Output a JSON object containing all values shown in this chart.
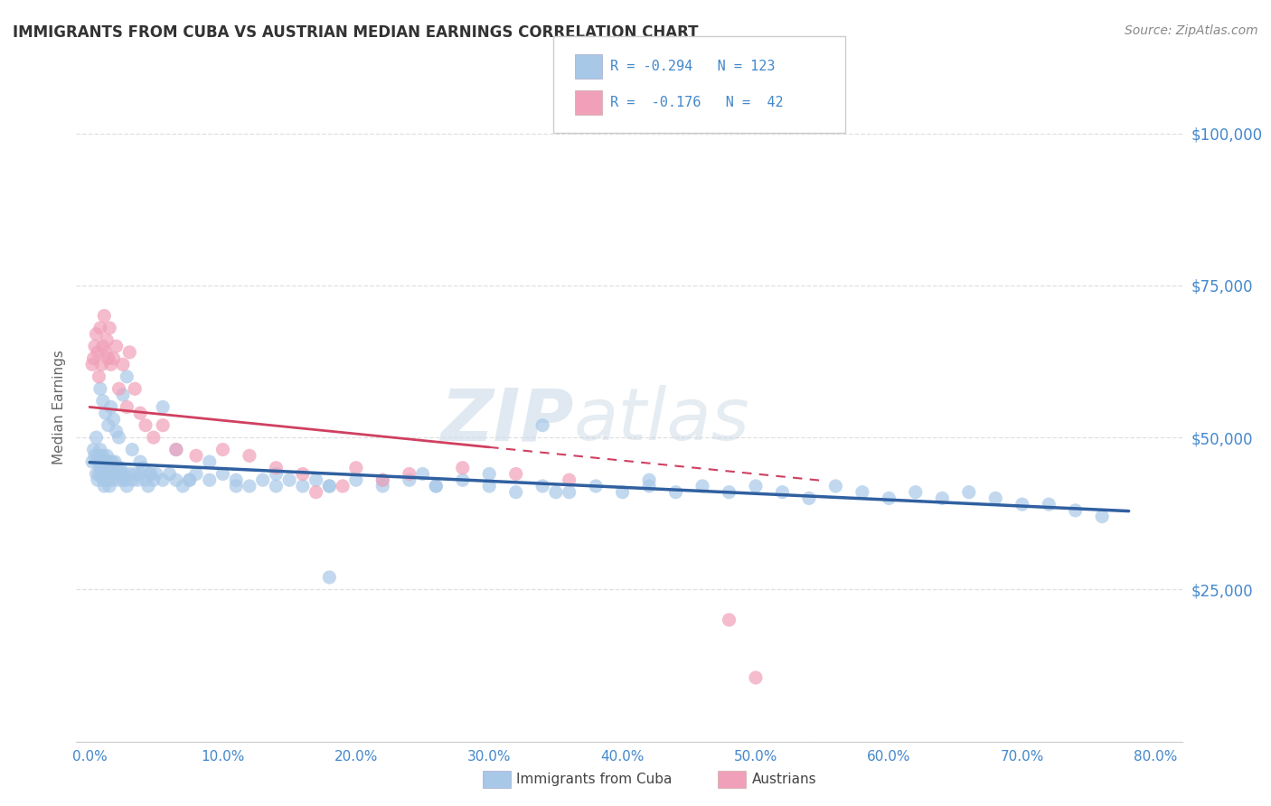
{
  "title": "IMMIGRANTS FROM CUBA VS AUSTRIAN MEDIAN EARNINGS CORRELATION CHART",
  "source": "Source: ZipAtlas.com",
  "ylabel": "Median Earnings",
  "watermark_zip": "ZIP",
  "watermark_atlas": "atlas",
  "blue_color": "#a8c8e8",
  "pink_color": "#f0a0b8",
  "blue_line_color": "#3060a0",
  "pink_line_color": "#d04060",
  "axis_label_color": "#4488cc",
  "ytick_color": "#4488cc",
  "title_color": "#333333",
  "background_color": "#ffffff",
  "grid_color": "#d8d8d8",
  "blue_scatter_x": [
    0.002,
    0.003,
    0.004,
    0.005,
    0.005,
    0.006,
    0.006,
    0.007,
    0.007,
    0.008,
    0.008,
    0.009,
    0.009,
    0.01,
    0.01,
    0.011,
    0.011,
    0.012,
    0.012,
    0.013,
    0.013,
    0.014,
    0.014,
    0.015,
    0.015,
    0.016,
    0.016,
    0.017,
    0.017,
    0.018,
    0.019,
    0.02,
    0.021,
    0.022,
    0.023,
    0.024,
    0.025,
    0.026,
    0.027,
    0.028,
    0.03,
    0.032,
    0.034,
    0.036,
    0.038,
    0.04,
    0.042,
    0.044,
    0.046,
    0.048,
    0.05,
    0.055,
    0.06,
    0.065,
    0.07,
    0.075,
    0.08,
    0.09,
    0.1,
    0.11,
    0.12,
    0.13,
    0.14,
    0.15,
    0.16,
    0.17,
    0.18,
    0.2,
    0.22,
    0.24,
    0.26,
    0.28,
    0.3,
    0.32,
    0.34,
    0.36,
    0.38,
    0.4,
    0.42,
    0.44,
    0.46,
    0.48,
    0.5,
    0.52,
    0.54,
    0.56,
    0.58,
    0.6,
    0.62,
    0.64,
    0.66,
    0.68,
    0.7,
    0.72,
    0.74,
    0.76,
    0.008,
    0.01,
    0.012,
    0.014,
    0.016,
    0.018,
    0.02,
    0.022,
    0.025,
    0.028,
    0.032,
    0.038,
    0.045,
    0.055,
    0.065,
    0.075,
    0.09,
    0.11,
    0.14,
    0.18,
    0.22,
    0.26,
    0.3,
    0.18,
    0.25,
    0.35,
    0.42,
    0.34
  ],
  "blue_scatter_y": [
    46000,
    48000,
    47000,
    50000,
    44000,
    46000,
    43000,
    47000,
    44000,
    48000,
    45000,
    46000,
    44000,
    47000,
    43000,
    45000,
    42000,
    46000,
    43000,
    47000,
    44000,
    45000,
    43000,
    46000,
    42000,
    45000,
    44000,
    46000,
    43000,
    45000,
    46000,
    45000,
    44000,
    43000,
    45000,
    44000,
    43000,
    44000,
    43000,
    42000,
    44000,
    43000,
    44000,
    43000,
    44000,
    45000,
    43000,
    42000,
    44000,
    43000,
    44000,
    43000,
    44000,
    43000,
    42000,
    43000,
    44000,
    43000,
    44000,
    43000,
    42000,
    43000,
    42000,
    43000,
    42000,
    43000,
    42000,
    43000,
    42000,
    43000,
    42000,
    43000,
    42000,
    41000,
    42000,
    41000,
    42000,
    41000,
    42000,
    41000,
    42000,
    41000,
    42000,
    41000,
    40000,
    42000,
    41000,
    40000,
    41000,
    40000,
    41000,
    40000,
    39000,
    39000,
    38000,
    37000,
    58000,
    56000,
    54000,
    52000,
    55000,
    53000,
    51000,
    50000,
    57000,
    60000,
    48000,
    46000,
    44000,
    55000,
    48000,
    43000,
    46000,
    42000,
    44000,
    42000,
    43000,
    42000,
    44000,
    27000,
    44000,
    41000,
    43000,
    52000
  ],
  "pink_scatter_x": [
    0.002,
    0.003,
    0.004,
    0.005,
    0.006,
    0.007,
    0.008,
    0.009,
    0.01,
    0.011,
    0.012,
    0.013,
    0.014,
    0.015,
    0.016,
    0.018,
    0.02,
    0.022,
    0.025,
    0.028,
    0.03,
    0.034,
    0.038,
    0.042,
    0.048,
    0.055,
    0.065,
    0.08,
    0.1,
    0.12,
    0.14,
    0.16,
    0.2,
    0.24,
    0.28,
    0.32,
    0.36,
    0.17,
    0.19,
    0.22,
    0.48,
    0.5
  ],
  "pink_scatter_y": [
    62000,
    63000,
    65000,
    67000,
    64000,
    60000,
    68000,
    62000,
    65000,
    70000,
    64000,
    66000,
    63000,
    68000,
    62000,
    63000,
    65000,
    58000,
    62000,
    55000,
    64000,
    58000,
    54000,
    52000,
    50000,
    52000,
    48000,
    47000,
    48000,
    47000,
    45000,
    44000,
    45000,
    44000,
    45000,
    44000,
    43000,
    41000,
    42000,
    43000,
    20000,
    10500
  ],
  "xlim": [
    -0.01,
    0.82
  ],
  "ylim": [
    0,
    110000
  ],
  "xtick_positions": [
    0.0,
    0.1,
    0.2,
    0.3,
    0.4,
    0.5,
    0.6,
    0.7,
    0.8
  ],
  "xtick_labels": [
    "0.0%",
    "10.0%",
    "20.0%",
    "30.0%",
    "40.0%",
    "50.0%",
    "60.0%",
    "70.0%",
    "80.0%"
  ],
  "ytick_positions": [
    0,
    25000,
    50000,
    75000,
    100000
  ],
  "ytick_labels": [
    "",
    "$25,000",
    "$50,000",
    "$75,000",
    "$100,000"
  ]
}
